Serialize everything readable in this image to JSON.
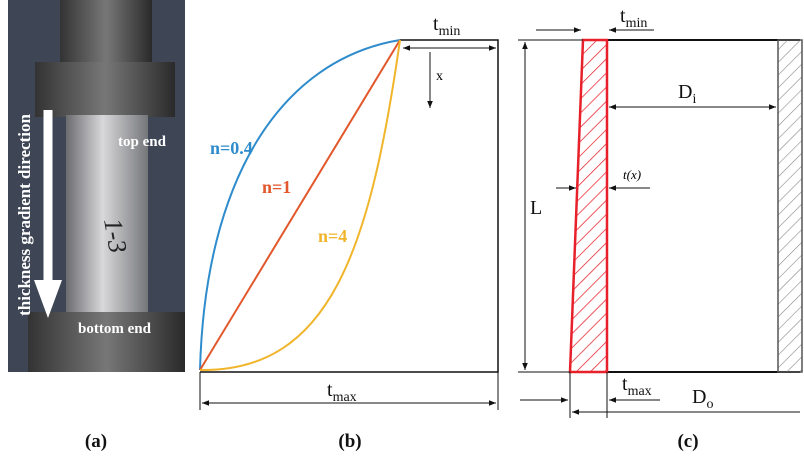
{
  "panel_a": {
    "label": "(a)",
    "direction": "thickness gradient direction",
    "top": "top end",
    "bottom": "bottom end",
    "specimen": "1-3"
  },
  "panel_b": {
    "label": "(b)",
    "t_min": {
      "base": "t",
      "sub": "min"
    },
    "x": "x",
    "curves": [
      "n=0.4",
      "n=1",
      "n=4"
    ],
    "t_max": {
      "base": "t",
      "sub": "max"
    }
  },
  "panel_c": {
    "label": "(c)",
    "t_min": {
      "base": "t",
      "sub": "min"
    },
    "length": "L",
    "d_i": {
      "base": "D",
      "sub": "i"
    },
    "t_x": "t(x)",
    "t_max": {
      "base": "t",
      "sub": "max"
    },
    "d_o": {
      "base": "D",
      "sub": "o"
    }
  }
}
